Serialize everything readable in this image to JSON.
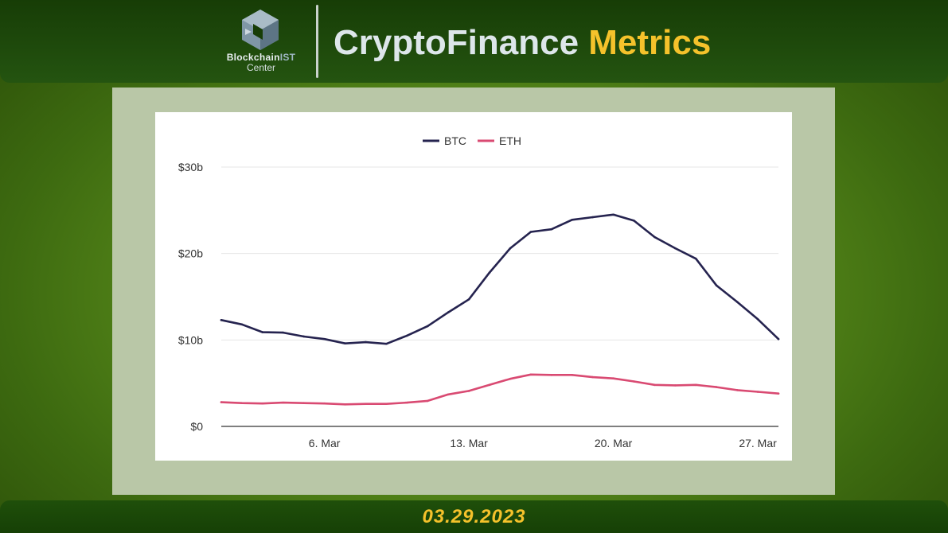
{
  "header": {
    "logo_line1_a": "Blockchain",
    "logo_line1_b": "IST",
    "logo_line2": "Center",
    "title_part1": "CryptoFinance",
    "title_part2": "Metrics"
  },
  "footer": {
    "date": "03.29.2023"
  },
  "colors": {
    "btc": "#25234f",
    "eth": "#d94a72",
    "accent": "#f5c22b"
  },
  "chart_data": {
    "type": "line",
    "title": "",
    "xlabel": "",
    "ylabel": "",
    "x": [
      "1 Mar",
      "2 Mar",
      "3 Mar",
      "4 Mar",
      "5 Mar",
      "6 Mar",
      "7 Mar",
      "8 Mar",
      "9 Mar",
      "10 Mar",
      "11 Mar",
      "12 Mar",
      "13 Mar",
      "14 Mar",
      "15 Mar",
      "16 Mar",
      "17 Mar",
      "18 Mar",
      "19 Mar",
      "20 Mar",
      "21 Mar",
      "22 Mar",
      "23 Mar",
      "24 Mar",
      "25 Mar",
      "26 Mar",
      "27 Mar",
      "28 Mar"
    ],
    "x_ticks": [
      {
        "index": 5,
        "label": "6. Mar"
      },
      {
        "index": 12,
        "label": "13. Mar"
      },
      {
        "index": 19,
        "label": "20. Mar"
      },
      {
        "index": 26,
        "label": "27. Mar"
      }
    ],
    "y_ticks": [
      {
        "value": 0,
        "label": "$0"
      },
      {
        "value": 10,
        "label": "$10b"
      },
      {
        "value": 20,
        "label": "$20b"
      },
      {
        "value": 30,
        "label": "$30b"
      }
    ],
    "ylim": [
      0,
      30
    ],
    "grid": true,
    "legend_position": "top-center",
    "series": [
      {
        "name": "BTC",
        "color": "#25234f",
        "values": [
          12.3,
          11.8,
          10.9,
          10.85,
          10.4,
          10.1,
          9.6,
          9.75,
          9.55,
          10.5,
          11.6,
          13.2,
          14.7,
          17.8,
          20.6,
          22.5,
          22.8,
          23.9,
          24.2,
          24.5,
          23.8,
          21.9,
          20.6,
          19.4,
          16.3,
          14.4,
          12.4,
          10.1
        ]
      },
      {
        "name": "ETH",
        "color": "#d94a72",
        "values": [
          2.8,
          2.7,
          2.65,
          2.75,
          2.7,
          2.65,
          2.55,
          2.6,
          2.6,
          2.75,
          2.95,
          3.7,
          4.1,
          4.8,
          5.5,
          6.0,
          5.95,
          5.95,
          5.7,
          5.55,
          5.2,
          4.8,
          4.75,
          4.8,
          4.55,
          4.2,
          4.0,
          3.8
        ]
      }
    ]
  }
}
